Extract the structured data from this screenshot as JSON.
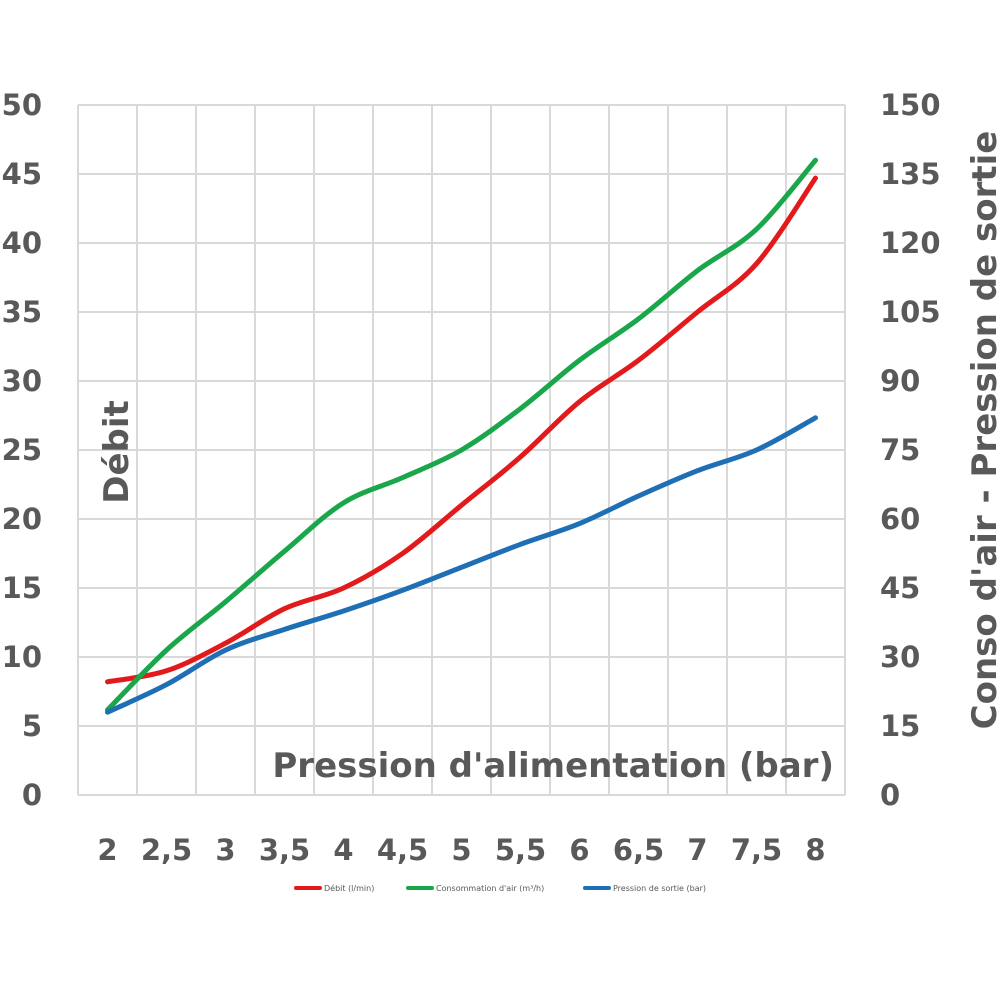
{
  "chart_data": {
    "type": "line",
    "x": [
      2,
      2.5,
      3,
      3.5,
      4,
      4.5,
      5,
      5.5,
      6,
      6.5,
      7,
      7.5,
      8
    ],
    "x_tick_labels": [
      "2",
      "2,5",
      "3",
      "3,5",
      "4",
      "4,5",
      "5",
      "5,5",
      "6",
      "6,5",
      "7",
      "7,5",
      "8"
    ],
    "xlabel": "Pression d'alimentation (bar)",
    "ylabel_left": "Débit",
    "ylabel_right": "Conso d'air - Pression de sortie",
    "ylim_left": [
      0,
      50
    ],
    "ylim_right": [
      0,
      150
    ],
    "yticks_left": [
      "0",
      "5",
      "10",
      "15",
      "20",
      "25",
      "30",
      "35",
      "40",
      "45",
      "50"
    ],
    "yticks_right": [
      "0",
      "15",
      "30",
      "45",
      "60",
      "75",
      "90",
      "105",
      "120",
      "135",
      "150"
    ],
    "grid": true,
    "legend_position": "bottom",
    "series": [
      {
        "name": "Débit (l/min)",
        "axis": "left",
        "color": "#e31a1c",
        "values": [
          8.2,
          9.0,
          11.0,
          13.5,
          15.0,
          17.5,
          21.0,
          24.5,
          28.5,
          31.5,
          35.0,
          38.5,
          44.7
        ]
      },
      {
        "name": "Consommation d'air (m³/h)",
        "axis": "right",
        "color": "#1aa64a",
        "values": [
          18.5,
          31.5,
          42.0,
          53.0,
          63.5,
          69.0,
          75.0,
          84.0,
          94.5,
          103.5,
          114.0,
          123.0,
          138.0
        ]
      },
      {
        "name": "Pression de sortie (bar)",
        "axis": "right",
        "color": "#1f6fb4",
        "values": [
          18.0,
          24.0,
          31.5,
          36.0,
          40.0,
          44.5,
          49.5,
          54.5,
          59.0,
          65.0,
          70.5,
          75.0,
          82.0
        ]
      }
    ]
  }
}
